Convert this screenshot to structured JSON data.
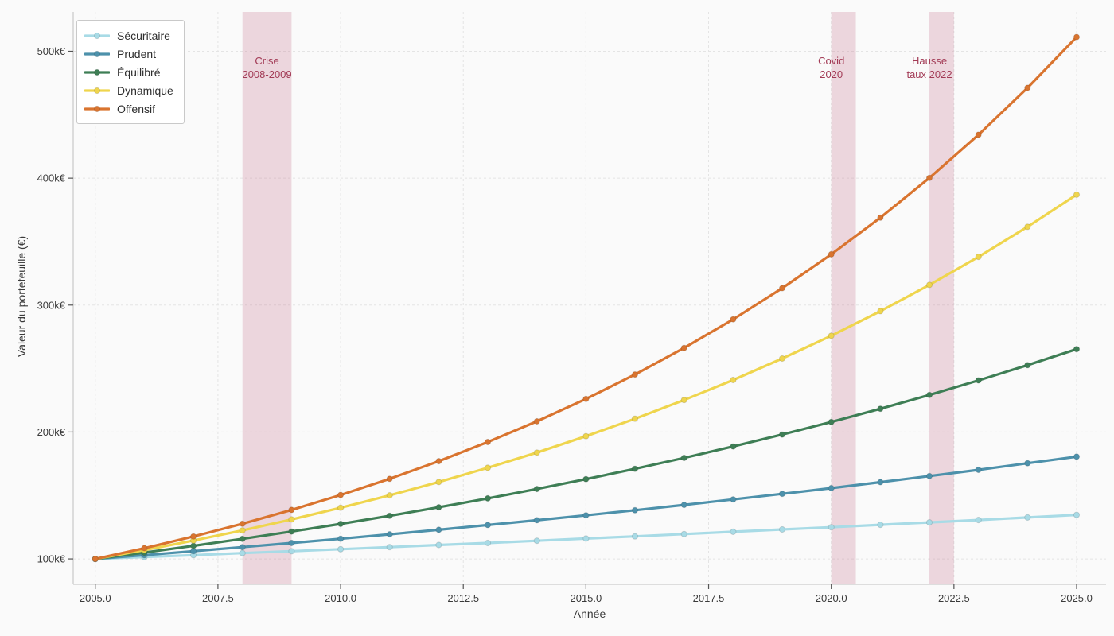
{
  "figure": {
    "background": "#fafafa"
  },
  "chart_data": {
    "type": "line",
    "title": "",
    "xlabel": "Année",
    "ylabel": "Valeur du portefeuille (€)",
    "unit": "k€",
    "x": [
      2005,
      2006,
      2007,
      2008,
      2009,
      2010,
      2011,
      2012,
      2013,
      2014,
      2015,
      2016,
      2017,
      2018,
      2019,
      2020,
      2021,
      2022,
      2023,
      2024,
      2025
    ],
    "series": [
      {
        "name": "Sécuritaire",
        "color": "#a8dbe6",
        "values": [
          100.0,
          101.5,
          103.0,
          104.6,
          106.1,
          107.7,
          109.3,
          111.0,
          112.6,
          114.3,
          116.1,
          117.8,
          119.6,
          121.4,
          123.2,
          125.0,
          126.9,
          128.8,
          130.7,
          132.7,
          134.7
        ]
      },
      {
        "name": "Prudent",
        "color": "#4d91ab",
        "values": [
          100.0,
          103.0,
          106.1,
          109.3,
          112.6,
          115.9,
          119.4,
          123.0,
          126.7,
          130.5,
          134.4,
          138.4,
          142.6,
          146.9,
          151.3,
          155.8,
          160.5,
          165.3,
          170.2,
          175.4,
          180.6
        ]
      },
      {
        "name": "Équilibré",
        "color": "#3e7e55",
        "values": [
          100.0,
          105.0,
          110.3,
          115.8,
          121.6,
          127.6,
          134.0,
          140.7,
          147.7,
          155.1,
          162.9,
          171.0,
          179.6,
          188.6,
          198.0,
          207.9,
          218.3,
          229.2,
          240.7,
          252.7,
          265.3
        ]
      },
      {
        "name": "Dynamique",
        "color": "#efd54d",
        "values": [
          100.0,
          107.0,
          114.5,
          122.5,
          131.1,
          140.3,
          150.1,
          160.6,
          171.8,
          183.8,
          196.7,
          210.5,
          225.2,
          241.0,
          257.9,
          275.9,
          295.2,
          315.9,
          338.0,
          361.7,
          387.0
        ]
      },
      {
        "name": "Offensif",
        "color": "#d9742f",
        "values": [
          100.0,
          108.5,
          117.7,
          127.7,
          138.6,
          150.4,
          163.1,
          177.0,
          192.1,
          208.4,
          226.1,
          245.3,
          266.2,
          288.8,
          313.3,
          340.0,
          368.9,
          400.2,
          434.2,
          471.2,
          511.2
        ]
      }
    ],
    "x_ticks": [
      {
        "value": 2005.0,
        "label": "2005.0"
      },
      {
        "value": 2007.5,
        "label": "2007.5"
      },
      {
        "value": 2010.0,
        "label": "2010.0"
      },
      {
        "value": 2012.5,
        "label": "2012.5"
      },
      {
        "value": 2015.0,
        "label": "2015.0"
      },
      {
        "value": 2017.5,
        "label": "2017.5"
      },
      {
        "value": 2020.0,
        "label": "2020.0"
      },
      {
        "value": 2022.5,
        "label": "2022.5"
      },
      {
        "value": 2025.0,
        "label": "2025.0"
      }
    ],
    "y_ticks": [
      {
        "value": 100,
        "label": "100k€"
      },
      {
        "value": 200,
        "label": "200k€"
      },
      {
        "value": 300,
        "label": "300k€"
      },
      {
        "value": 400,
        "label": "400k€"
      },
      {
        "value": 500,
        "label": "500k€"
      }
    ],
    "xlim": [
      2004.55,
      2025.6
    ],
    "ylim": [
      80,
      531
    ],
    "grid": "dashed",
    "legend_position": "top-left",
    "bands": [
      {
        "name": "crise-2008-2009",
        "x0": 2008.0,
        "x1": 2009.0,
        "label_x": 2008.5,
        "label_lines": [
          "Crise",
          "2008-2009"
        ]
      },
      {
        "name": "covid-2020",
        "x0": 2020.0,
        "x1": 2020.5,
        "label_x": 2020.0,
        "label_lines": [
          "Covid",
          "2020"
        ]
      },
      {
        "name": "hausse-taux-2022",
        "x0": 2022.0,
        "x1": 2022.5,
        "label_x": 2022.0,
        "label_lines": [
          "Hausse",
          "taux 2022"
        ]
      }
    ],
    "colors": {
      "band_fill": "rgba(201,123,147,0.28)",
      "band_label": "#a23a55",
      "grid": "#e4e4e4",
      "spine": "#cccccc",
      "tick": "#555555",
      "text": "#3a3a3a"
    }
  }
}
